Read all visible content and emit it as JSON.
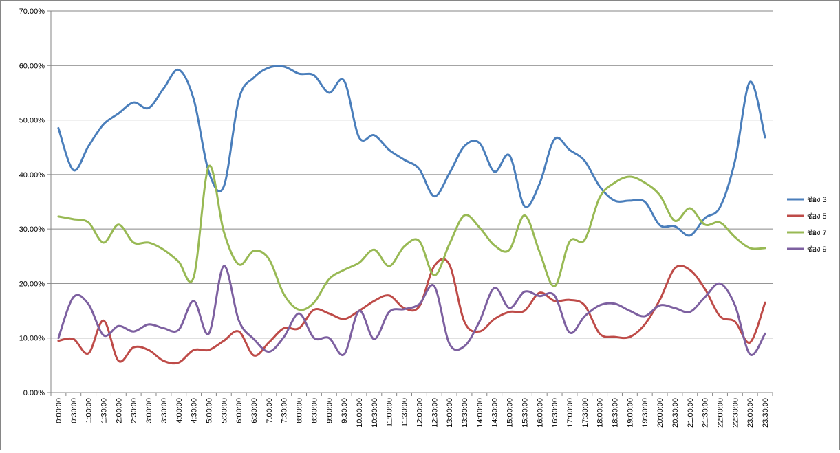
{
  "chart_data": {
    "type": "line",
    "title": "",
    "xlabel": "",
    "ylabel": "",
    "ylim": [
      0,
      0.7
    ],
    "y_ticks": [
      "0.00%",
      "10.00%",
      "20.00%",
      "30.00%",
      "40.00%",
      "50.00%",
      "60.00%",
      "70.00%"
    ],
    "y_tick_values": [
      0,
      0.1,
      0.2,
      0.3,
      0.4,
      0.5,
      0.6,
      0.7
    ],
    "grid": true,
    "legend_position": "right",
    "smooth": true,
    "categories": [
      "0:00:00",
      "0:30:00",
      "1:00:00",
      "1:30:00",
      "2:00:00",
      "2:30:00",
      "3:00:00",
      "3:30:00",
      "4:00:00",
      "4:30:00",
      "5:00:00",
      "5:30:00",
      "6:00:00",
      "6:30:00",
      "7:00:00",
      "7:30:00",
      "8:00:00",
      "8:30:00",
      "9:00:00",
      "9:30:00",
      "10:00:00",
      "10:30:00",
      "11:00:00",
      "11:30:00",
      "12:00:00",
      "12:30:00",
      "13:00:00",
      "13:30:00",
      "14:00:00",
      "14:30:00",
      "15:00:00",
      "15:30:00",
      "16:00:00",
      "16:30:00",
      "17:00:00",
      "17:30:00",
      "18:00:00",
      "18:30:00",
      "19:00:00",
      "19:30:00",
      "20:00:00",
      "20:30:00",
      "21:00:00",
      "21:30:00",
      "22:00:00",
      "22:30:00",
      "23:00:00",
      "23:30:00"
    ],
    "series": [
      {
        "name": "ช่อง 3",
        "color": "#4a7ebb",
        "values": [
          0.485,
          0.408,
          0.452,
          0.492,
          0.512,
          0.532,
          0.522,
          0.558,
          0.592,
          0.538,
          0.405,
          0.378,
          0.538,
          0.578,
          0.596,
          0.598,
          0.585,
          0.582,
          0.55,
          0.572,
          0.468,
          0.472,
          0.445,
          0.427,
          0.41,
          0.36,
          0.402,
          0.452,
          0.458,
          0.405,
          0.435,
          0.342,
          0.383,
          0.465,
          0.445,
          0.425,
          0.378,
          0.352,
          0.352,
          0.35,
          0.307,
          0.305,
          0.288,
          0.32,
          0.34,
          0.425,
          0.57,
          0.468
        ]
      },
      {
        "name": "ช่อง 5",
        "color": "#be4b48",
        "values": [
          0.095,
          0.098,
          0.072,
          0.132,
          0.058,
          0.083,
          0.078,
          0.058,
          0.055,
          0.078,
          0.078,
          0.095,
          0.112,
          0.068,
          0.092,
          0.118,
          0.118,
          0.152,
          0.145,
          0.135,
          0.15,
          0.168,
          0.178,
          0.155,
          0.158,
          0.232,
          0.235,
          0.13,
          0.112,
          0.135,
          0.148,
          0.15,
          0.183,
          0.168,
          0.17,
          0.16,
          0.108,
          0.102,
          0.102,
          0.125,
          0.17,
          0.228,
          0.225,
          0.19,
          0.14,
          0.13,
          0.092,
          0.165
        ]
      },
      {
        "name": "ช่อง 7",
        "color": "#98b954",
        "values": [
          0.323,
          0.318,
          0.312,
          0.275,
          0.308,
          0.275,
          0.275,
          0.262,
          0.24,
          0.212,
          0.415,
          0.295,
          0.235,
          0.26,
          0.245,
          0.18,
          0.152,
          0.165,
          0.208,
          0.225,
          0.238,
          0.262,
          0.232,
          0.268,
          0.278,
          0.215,
          0.272,
          0.325,
          0.303,
          0.27,
          0.262,
          0.325,
          0.258,
          0.195,
          0.277,
          0.28,
          0.358,
          0.385,
          0.396,
          0.385,
          0.362,
          0.315,
          0.338,
          0.308,
          0.312,
          0.285,
          0.265,
          0.265
        ]
      },
      {
        "name": "ช่อง 9",
        "color": "#7d60a0",
        "values": [
          0.1,
          0.175,
          0.162,
          0.105,
          0.122,
          0.112,
          0.125,
          0.118,
          0.115,
          0.168,
          0.108,
          0.232,
          0.132,
          0.098,
          0.075,
          0.102,
          0.145,
          0.1,
          0.1,
          0.07,
          0.15,
          0.098,
          0.148,
          0.153,
          0.162,
          0.195,
          0.09,
          0.085,
          0.13,
          0.192,
          0.155,
          0.185,
          0.177,
          0.178,
          0.11,
          0.14,
          0.16,
          0.163,
          0.15,
          0.14,
          0.16,
          0.155,
          0.148,
          0.175,
          0.2,
          0.16,
          0.07,
          0.108
        ]
      }
    ]
  }
}
